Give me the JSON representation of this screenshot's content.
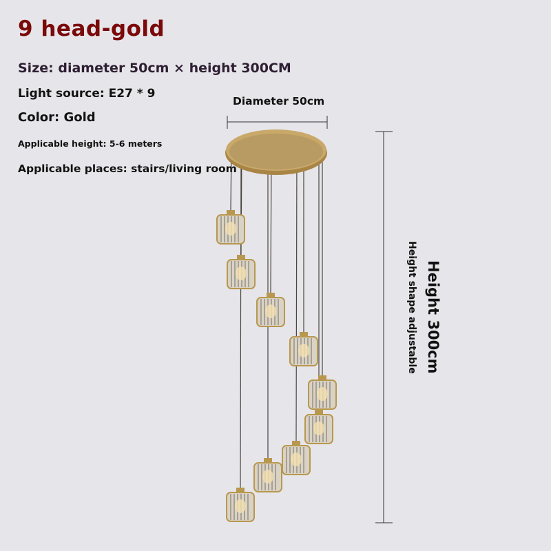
{
  "title": "9 head-gold",
  "specs": {
    "size": "Size: diameter 50cm × height 300CM",
    "light_source": "Light source: E27 * 9",
    "color": "Color: Gold",
    "applicable_height": "Applicable height: 5-6 meters",
    "applicable_places": "Applicable places: stairs/living room"
  },
  "dimensions": {
    "diameter_label": "Diameter 50cm",
    "height_label": "Height 300cm",
    "height_note": "Height shape adjustable"
  },
  "colors": {
    "title": "#7a0a0a",
    "size_text": "#2e1f33",
    "background": "#e6e5e9",
    "gold": "#b8974f"
  }
}
